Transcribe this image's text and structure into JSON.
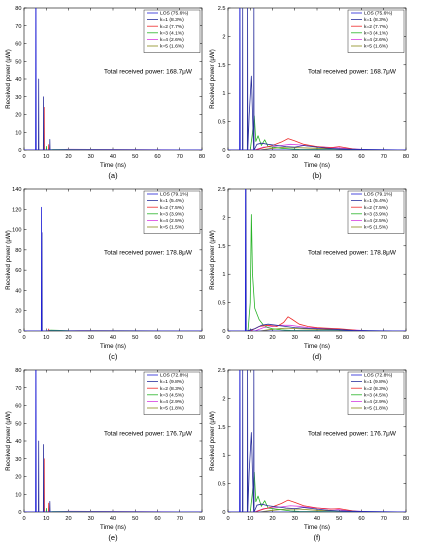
{
  "figure": {
    "panel_labels": [
      "(a)",
      "(b)",
      "(c)",
      "(d)",
      "(e)",
      "(f)"
    ]
  },
  "colors": {
    "LOS": "#1f1fd6",
    "k1": "#2a2f9c",
    "k2": "#ee2a2a",
    "k3": "#27b327",
    "k4": "#d63de0",
    "k5": "#8a8a1a"
  },
  "chart_data": [
    {
      "id": "a",
      "type": "line",
      "xlabel": "Time (ns)",
      "ylabel": "Received power (μW)",
      "xlim": [
        0,
        80
      ],
      "ylim": [
        0,
        80
      ],
      "xticks": [
        0,
        10,
        20,
        30,
        40,
        50,
        60,
        70,
        80
      ],
      "yticks": [
        0,
        10,
        20,
        30,
        40,
        50,
        60,
        70,
        80
      ],
      "annotation": "Total received power: 168.7μW",
      "legend_position": "top-right",
      "series": [
        {
          "name": "LOS (75.6%)",
          "x": [
            0,
            5.2,
            5.3,
            5.4,
            5.5,
            80
          ],
          "y": [
            0,
            0,
            80,
            80,
            0,
            0
          ]
        },
        {
          "name": "k=1 (8.3%)",
          "x": [
            0,
            6.5,
            6.6,
            6.7,
            8.7,
            8.8,
            8.9,
            11.5,
            11.6,
            11.7,
            80
          ],
          "y": [
            0,
            0,
            40,
            0,
            0,
            30,
            0,
            0,
            6,
            0,
            0
          ]
        },
        {
          "name": "k=2 (7.7%)",
          "x": [
            0,
            9,
            9.1,
            9.2,
            11,
            11.1,
            11.2,
            80
          ],
          "y": [
            0,
            0,
            24,
            0,
            0,
            3,
            0,
            0
          ]
        },
        {
          "name": "k=3 (4.1%)",
          "x": [
            0,
            10,
            10.1,
            10.2,
            13,
            80
          ],
          "y": [
            0,
            0,
            2,
            0,
            0.3,
            0
          ]
        },
        {
          "name": "k=4 (2.6%)",
          "x": [
            0,
            12,
            20,
            80
          ],
          "y": [
            0,
            0,
            0.4,
            0
          ]
        },
        {
          "name": "k=5 (1.6%)",
          "x": [
            0,
            14,
            25,
            80
          ],
          "y": [
            0,
            0,
            0.2,
            0
          ]
        }
      ]
    },
    {
      "id": "b",
      "type": "line",
      "xlabel": "Time (ns)",
      "ylabel": "Received power (μW)",
      "xlim": [
        0,
        80
      ],
      "ylim": [
        0,
        2.5
      ],
      "xticks": [
        0,
        10,
        20,
        30,
        40,
        50,
        60,
        70,
        80
      ],
      "yticks": [
        0,
        0.5,
        1,
        1.5,
        2,
        2.5
      ],
      "annotation": "Total received power: 168.7μW",
      "legend_position": "top-right",
      "series": [
        {
          "name": "LOS (75.6%)",
          "x": [
            0,
            5.2,
            5.3,
            5.4,
            5.5,
            80
          ],
          "y": [
            0,
            0,
            2.5,
            2.5,
            0,
            0
          ]
        },
        {
          "name": "k=1 (8.3%)",
          "x": [
            0,
            6.5,
            6.6,
            6.7,
            8.7,
            8.8,
            8.9,
            9.5,
            10.5,
            11.5,
            11.6,
            11.7,
            13,
            15,
            18,
            22,
            26,
            30,
            34,
            40,
            45,
            50,
            60,
            80
          ],
          "y": [
            0,
            0,
            2.5,
            0,
            0,
            2.5,
            0,
            0.6,
            1.3,
            0,
            2.5,
            0,
            0.1,
            0.12,
            0.1,
            0.08,
            0.06,
            0.05,
            0.08,
            0.05,
            0.03,
            0.02,
            0.01,
            0
          ]
        },
        {
          "name": "k=2 (7.7%)",
          "x": [
            0,
            12,
            16,
            20,
            24,
            27,
            30,
            34,
            40,
            46,
            50,
            56,
            60,
            80
          ],
          "y": [
            0,
            0,
            0.04,
            0.08,
            0.14,
            0.2,
            0.16,
            0.1,
            0.06,
            0.04,
            0.06,
            0.02,
            0,
            0
          ]
        },
        {
          "name": "k=3 (4.1%)",
          "x": [
            0,
            10,
            11,
            11.8,
            12.5,
            13.5,
            15,
            16.5,
            18,
            20,
            24,
            28,
            32,
            80
          ],
          "y": [
            0,
            0,
            0.3,
            0.6,
            0.15,
            0.25,
            0.08,
            0.18,
            0.06,
            0.05,
            0.03,
            0.02,
            0.01,
            0
          ]
        },
        {
          "name": "k=4 (2.6%)",
          "x": [
            0,
            12,
            16,
            20,
            24,
            28,
            32,
            36,
            40,
            44,
            48,
            52,
            56,
            60,
            64,
            80
          ],
          "y": [
            0,
            0,
            0.05,
            0.06,
            0.08,
            0.1,
            0.09,
            0.07,
            0.06,
            0.05,
            0.04,
            0.03,
            0.02,
            0.01,
            0,
            0
          ]
        },
        {
          "name": "k=5 (1.6%)",
          "x": [
            0,
            14,
            20,
            26,
            32,
            40,
            48,
            56,
            64,
            80
          ],
          "y": [
            0,
            0,
            0.03,
            0.05,
            0.04,
            0.03,
            0.02,
            0.01,
            0,
            0
          ]
        }
      ]
    },
    {
      "id": "c",
      "type": "line",
      "xlabel": "Time (ns)",
      "ylabel": "Received power (μW)",
      "xlim": [
        0,
        80
      ],
      "ylim": [
        0,
        140
      ],
      "xticks": [
        0,
        10,
        20,
        30,
        40,
        50,
        60,
        70,
        80
      ],
      "yticks": [
        0,
        20,
        40,
        60,
        80,
        100,
        120,
        140
      ],
      "annotation": "Total received power: 178.8μW",
      "legend_position": "top-right",
      "series": [
        {
          "name": "LOS (79.1%)",
          "x": [
            0,
            7.8,
            7.9,
            8.0,
            80
          ],
          "y": [
            0,
            0,
            122,
            0,
            0
          ]
        },
        {
          "name": "k=1 (5.4%)",
          "x": [
            0,
            8.0,
            8.1,
            8.2,
            80
          ],
          "y": [
            0,
            0,
            97,
            0,
            0
          ]
        },
        {
          "name": "k=2 (7.5%)",
          "x": [
            0,
            11,
            11.1,
            11.2,
            80
          ],
          "y": [
            0,
            0,
            2,
            0,
            0
          ]
        },
        {
          "name": "k=3 (3.9%)",
          "x": [
            0,
            10,
            12,
            20,
            80
          ],
          "y": [
            0,
            0,
            0.8,
            0.3,
            0
          ]
        },
        {
          "name": "k=4 (2.5%)",
          "x": [
            0,
            12,
            25,
            80
          ],
          "y": [
            0,
            0,
            0.3,
            0
          ]
        },
        {
          "name": "k=5 (1.5%)",
          "x": [
            0,
            14,
            30,
            80
          ],
          "y": [
            0,
            0,
            0.2,
            0
          ]
        }
      ]
    },
    {
      "id": "d",
      "type": "line",
      "xlabel": "Time (ns)",
      "ylabel": "Received power (μW)",
      "xlim": [
        0,
        80
      ],
      "ylim": [
        0,
        2.5
      ],
      "xticks": [
        0,
        10,
        20,
        30,
        40,
        50,
        60,
        70,
        80
      ],
      "yticks": [
        0,
        0.5,
        1,
        1.5,
        2,
        2.5
      ],
      "annotation": "Total received power: 178.8μW",
      "legend_position": "top-right",
      "series": [
        {
          "name": "LOS (79.1%)",
          "x": [
            0,
            7.8,
            7.9,
            8.0,
            80
          ],
          "y": [
            0,
            0,
            2.5,
            0,
            0
          ]
        },
        {
          "name": "k=1 (5.4%)",
          "x": [
            0,
            8.0,
            8.1,
            8.2,
            12,
            15,
            18,
            22,
            26,
            30,
            34,
            40,
            48,
            56,
            80
          ],
          "y": [
            0,
            0,
            2.5,
            0,
            0.04,
            0.1,
            0.12,
            0.1,
            0.08,
            0.06,
            0.05,
            0.04,
            0.03,
            0.01,
            0
          ]
        },
        {
          "name": "k=2 (7.5%)",
          "x": [
            0,
            10,
            14,
            18,
            22,
            25,
            27,
            29,
            32,
            36,
            40,
            44,
            50,
            56,
            60,
            80
          ],
          "y": [
            0,
            0,
            0.08,
            0.1,
            0.08,
            0.15,
            0.25,
            0.2,
            0.12,
            0.08,
            0.06,
            0.05,
            0.04,
            0.02,
            0,
            0
          ]
        },
        {
          "name": "k=3 (3.9%)",
          "x": [
            0,
            9,
            10,
            10.5,
            11,
            12,
            13,
            14,
            15,
            16,
            18,
            20,
            24,
            28,
            80
          ],
          "y": [
            0,
            0,
            0.5,
            2.05,
            1.0,
            0.4,
            0.3,
            0.2,
            0.15,
            0.1,
            0.06,
            0.04,
            0.02,
            0.01,
            0
          ]
        },
        {
          "name": "k=4 (2.5%)",
          "x": [
            0,
            12,
            16,
            20,
            24,
            28,
            32,
            36,
            40,
            44,
            48,
            52,
            56,
            60,
            64,
            80
          ],
          "y": [
            0,
            0,
            0.06,
            0.08,
            0.1,
            0.1,
            0.08,
            0.06,
            0.05,
            0.04,
            0.03,
            0.02,
            0.02,
            0.01,
            0,
            0
          ]
        },
        {
          "name": "k=5 (1.5%)",
          "x": [
            0,
            14,
            20,
            26,
            32,
            40,
            48,
            56,
            64,
            80
          ],
          "y": [
            0,
            0,
            0.03,
            0.05,
            0.04,
            0.03,
            0.02,
            0.01,
            0,
            0
          ]
        }
      ]
    },
    {
      "id": "e",
      "type": "line",
      "xlabel": "Time (ns)",
      "ylabel": "Received power (μW)",
      "xlim": [
        0,
        80
      ],
      "ylim": [
        0,
        80
      ],
      "xticks": [
        0,
        10,
        20,
        30,
        40,
        50,
        60,
        70,
        80
      ],
      "yticks": [
        0,
        10,
        20,
        30,
        40,
        50,
        60,
        70,
        80
      ],
      "annotation": "Total received power: 176.7μW",
      "legend_position": "top-right",
      "series": [
        {
          "name": "LOS (72.8%)",
          "x": [
            0,
            5.2,
            5.3,
            5.4,
            5.5,
            80
          ],
          "y": [
            0,
            0,
            80,
            80,
            0,
            0
          ]
        },
        {
          "name": "k=1 (9.8%)",
          "x": [
            0,
            6.5,
            6.6,
            6.7,
            8.7,
            8.8,
            8.9,
            11.5,
            11.6,
            11.7,
            80
          ],
          "y": [
            0,
            0,
            40,
            0,
            0,
            38,
            0,
            0,
            6,
            0,
            0
          ]
        },
        {
          "name": "k=2 (8.3%)",
          "x": [
            0,
            9,
            9.1,
            9.2,
            11,
            11.1,
            11.2,
            80
          ],
          "y": [
            0,
            0,
            30,
            0,
            0,
            5,
            0,
            0
          ]
        },
        {
          "name": "k=3 (4.5%)",
          "x": [
            0,
            10,
            10.1,
            10.2,
            13,
            80
          ],
          "y": [
            0,
            0,
            2,
            0,
            0.3,
            0
          ]
        },
        {
          "name": "k=4 (2.9%)",
          "x": [
            0,
            12,
            20,
            80
          ],
          "y": [
            0,
            0,
            0.4,
            0
          ]
        },
        {
          "name": "k=5 (1.8%)",
          "x": [
            0,
            14,
            25,
            80
          ],
          "y": [
            0,
            0,
            0.2,
            0
          ]
        }
      ]
    },
    {
      "id": "f",
      "type": "line",
      "xlabel": "Time (ns)",
      "ylabel": "Received power (μW)",
      "xlim": [
        0,
        80
      ],
      "ylim": [
        0,
        2.5
      ],
      "xticks": [
        0,
        10,
        20,
        30,
        40,
        50,
        60,
        70,
        80
      ],
      "yticks": [
        0,
        0.5,
        1,
        1.5,
        2,
        2.5
      ],
      "annotation": "Total received power: 176.7μW",
      "legend_position": "top-right",
      "series": [
        {
          "name": "LOS (72.8%)",
          "x": [
            0,
            5.2,
            5.3,
            5.4,
            5.5,
            80
          ],
          "y": [
            0,
            0,
            2.5,
            2.5,
            0,
            0
          ]
        },
        {
          "name": "k=1 (9.8%)",
          "x": [
            0,
            6.5,
            6.6,
            6.7,
            8.7,
            8.8,
            8.9,
            9.5,
            10.5,
            11.5,
            11.6,
            11.7,
            13,
            15,
            18,
            22,
            26,
            30,
            34,
            40,
            45,
            50,
            60,
            80
          ],
          "y": [
            0,
            0,
            2.5,
            0,
            0,
            2.5,
            0,
            0.7,
            1.4,
            0,
            2.5,
            0,
            0.12,
            0.14,
            0.11,
            0.09,
            0.07,
            0.06,
            0.08,
            0.05,
            0.03,
            0.02,
            0.01,
            0
          ]
        },
        {
          "name": "k=2 (8.3%)",
          "x": [
            0,
            12,
            16,
            20,
            24,
            27,
            30,
            34,
            40,
            46,
            50,
            56,
            60,
            80
          ],
          "y": [
            0,
            0,
            0.05,
            0.09,
            0.15,
            0.21,
            0.17,
            0.11,
            0.07,
            0.05,
            0.06,
            0.02,
            0,
            0
          ]
        },
        {
          "name": "k=3 (4.5%)",
          "x": [
            0,
            10,
            11,
            11.8,
            12.5,
            13.5,
            15,
            16.5,
            18,
            20,
            24,
            28,
            32,
            80
          ],
          "y": [
            0,
            0,
            0.35,
            0.7,
            0.18,
            0.28,
            0.1,
            0.2,
            0.07,
            0.06,
            0.04,
            0.02,
            0.01,
            0
          ]
        },
        {
          "name": "k=4 (2.9%)",
          "x": [
            0,
            12,
            16,
            20,
            24,
            28,
            32,
            36,
            40,
            44,
            48,
            52,
            56,
            60,
            64,
            80
          ],
          "y": [
            0,
            0,
            0.06,
            0.07,
            0.09,
            0.11,
            0.1,
            0.08,
            0.07,
            0.06,
            0.05,
            0.03,
            0.02,
            0.01,
            0,
            0
          ]
        },
        {
          "name": "k=5 (1.8%)",
          "x": [
            0,
            14,
            20,
            26,
            32,
            40,
            48,
            56,
            64,
            80
          ],
          "y": [
            0,
            0,
            0.03,
            0.05,
            0.05,
            0.03,
            0.02,
            0.01,
            0,
            0
          ]
        }
      ]
    }
  ]
}
